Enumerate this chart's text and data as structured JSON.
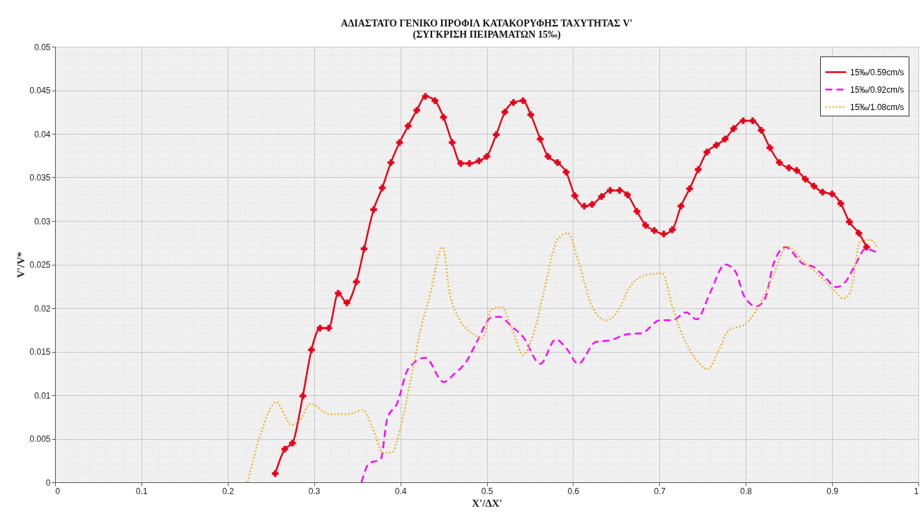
{
  "chart_data": {
    "type": "line",
    "title": "ΑΔΙΑΣΤΑΤΟ ΓΕΝΙΚΟ ΠΡΟΦΙΛ ΚΑΤΑΚΟΡΥΦΗΣ ΤΑΧΥΤΗΤΑΣ V'\n(ΣΥΓΚΡΙΣΗ ΠΕΙΡΑΜΑΤΩΝ 15‰)",
    "xlabel": "X'/ΔX'",
    "ylabel": "V'/V*",
    "xlim": [
      0,
      1
    ],
    "ylim": [
      0,
      0.05
    ],
    "xticks": [
      0,
      0.1,
      0.2,
      0.3,
      0.4,
      0.5,
      0.6,
      0.7,
      0.8,
      0.9,
      1
    ],
    "yticks": [
      0,
      0.005,
      0.01,
      0.015,
      0.02,
      0.025,
      0.03,
      0.035,
      0.04,
      0.045,
      0.05
    ],
    "grid": true,
    "legend": "top right",
    "series": [
      {
        "name": "15‰/0.59cm/s",
        "color": "#e8001a",
        "line_style": "solid",
        "marker": "cross",
        "x": [
          0.255,
          0.266,
          0.275,
          0.287,
          0.297,
          0.307,
          0.317,
          0.328,
          0.338,
          0.349,
          0.358,
          0.369,
          0.379,
          0.389,
          0.399,
          0.409,
          0.419,
          0.429,
          0.44,
          0.45,
          0.46,
          0.47,
          0.48,
          0.491,
          0.5,
          0.511,
          0.521,
          0.531,
          0.542,
          0.551,
          0.562,
          0.571,
          0.582,
          0.592,
          0.602,
          0.613,
          0.622,
          0.633,
          0.643,
          0.654,
          0.663,
          0.674,
          0.684,
          0.694,
          0.705,
          0.715,
          0.725,
          0.735,
          0.745,
          0.755,
          0.766,
          0.776,
          0.786,
          0.797,
          0.808,
          0.818,
          0.828,
          0.839,
          0.85,
          0.859,
          0.869,
          0.879,
          0.889,
          0.9,
          0.91,
          0.92,
          0.931,
          0.94
        ],
        "values": [
          0.001,
          0.0038,
          0.0045,
          0.0099,
          0.0152,
          0.0177,
          0.0177,
          0.0217,
          0.0206,
          0.023,
          0.0268,
          0.0313,
          0.0338,
          0.0367,
          0.039,
          0.0409,
          0.0427,
          0.0443,
          0.0438,
          0.0419,
          0.039,
          0.0366,
          0.0366,
          0.0369,
          0.0374,
          0.0399,
          0.0425,
          0.0436,
          0.0438,
          0.0422,
          0.0394,
          0.0374,
          0.0367,
          0.0356,
          0.0329,
          0.0317,
          0.0319,
          0.0328,
          0.0335,
          0.0335,
          0.033,
          0.0311,
          0.0295,
          0.0289,
          0.0285,
          0.029,
          0.0317,
          0.0337,
          0.0359,
          0.0379,
          0.0387,
          0.0394,
          0.0406,
          0.0415,
          0.0415,
          0.0404,
          0.0384,
          0.0367,
          0.0361,
          0.0358,
          0.0348,
          0.034,
          0.0333,
          0.0331,
          0.032,
          0.0299,
          0.0286,
          0.027
        ]
      },
      {
        "name": "15‰/0.92cm/s",
        "color": "#ff00ff",
        "line_style": "dashed",
        "marker": "none",
        "x": [
          0.355,
          0.364,
          0.377,
          0.385,
          0.396,
          0.409,
          0.429,
          0.45,
          0.462,
          0.476,
          0.489,
          0.505,
          0.514,
          0.53,
          0.542,
          0.562,
          0.58,
          0.592,
          0.606,
          0.626,
          0.643,
          0.663,
          0.679,
          0.701,
          0.715,
          0.731,
          0.743,
          0.759,
          0.776,
          0.788,
          0.798,
          0.812,
          0.822,
          0.832,
          0.846,
          0.866,
          0.879,
          0.893,
          0.905,
          0.917,
          0.927,
          0.939,
          0.951
        ],
        "values": [
          0,
          0.0022,
          0.0026,
          0.0074,
          0.009,
          0.013,
          0.0143,
          0.0115,
          0.0124,
          0.0138,
          0.0162,
          0.0189,
          0.019,
          0.0178,
          0.0167,
          0.0136,
          0.0164,
          0.0154,
          0.0136,
          0.0161,
          0.0163,
          0.017,
          0.0171,
          0.0186,
          0.0186,
          0.0195,
          0.0187,
          0.0218,
          0.025,
          0.0242,
          0.0214,
          0.0202,
          0.021,
          0.025,
          0.027,
          0.0251,
          0.0247,
          0.0234,
          0.0224,
          0.0232,
          0.025,
          0.0268,
          0.0264
        ]
      },
      {
        "name": "15‰/1.08cm/s",
        "color": "#edb120",
        "line_style": "dotted",
        "marker": "none",
        "x": [
          0.223,
          0.239,
          0.256,
          0.274,
          0.283,
          0.296,
          0.319,
          0.339,
          0.356,
          0.368,
          0.38,
          0.39,
          0.4,
          0.412,
          0.425,
          0.433,
          0.449,
          0.457,
          0.469,
          0.485,
          0.495,
          0.505,
          0.517,
          0.53,
          0.542,
          0.554,
          0.566,
          0.582,
          0.594,
          0.606,
          0.622,
          0.638,
          0.65,
          0.667,
          0.675,
          0.691,
          0.703,
          0.715,
          0.723,
          0.739,
          0.756,
          0.768,
          0.78,
          0.8,
          0.815,
          0.832,
          0.848,
          0.866,
          0.88,
          0.901,
          0.913,
          0.921,
          0.933,
          0.945,
          0.952
        ],
        "values": [
          0,
          0.0058,
          0.0092,
          0.0066,
          0.007,
          0.009,
          0.0078,
          0.0078,
          0.0083,
          0.0062,
          0.0034,
          0.0034,
          0.0062,
          0.0118,
          0.0182,
          0.021,
          0.027,
          0.0218,
          0.0186,
          0.017,
          0.0165,
          0.0198,
          0.0201,
          0.0174,
          0.0146,
          0.017,
          0.0218,
          0.0279,
          0.0286,
          0.0254,
          0.0202,
          0.0186,
          0.0194,
          0.0226,
          0.0234,
          0.0239,
          0.024,
          0.0202,
          0.0178,
          0.0146,
          0.013,
          0.015,
          0.0174,
          0.0182,
          0.0202,
          0.0238,
          0.0271,
          0.0254,
          0.0242,
          0.0222,
          0.0211,
          0.0218,
          0.0278,
          0.0278,
          0.027
        ]
      }
    ]
  }
}
